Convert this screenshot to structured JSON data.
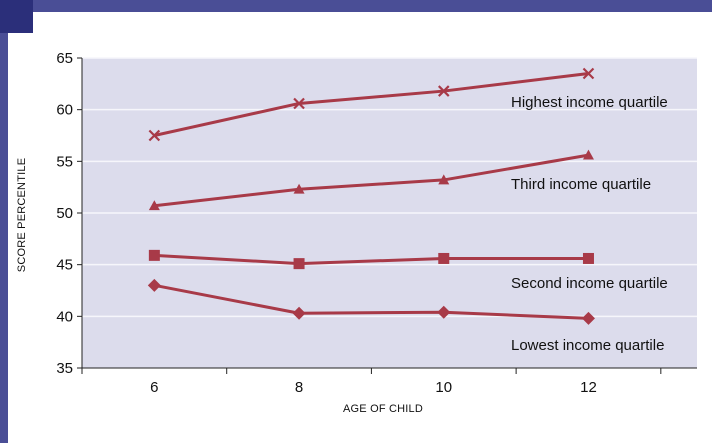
{
  "chart_data": {
    "type": "line",
    "xlabel": "AGE OF CHILD",
    "ylabel": "SCORE PERCENTILE",
    "x": [
      6,
      8,
      10,
      12
    ],
    "xlim": [
      5,
      13.5
    ],
    "ylim": [
      35,
      65
    ],
    "y_ticks": [
      35,
      40,
      45,
      50,
      55,
      60,
      65
    ],
    "x_tick_labels": [
      6,
      8,
      10,
      12
    ],
    "grid": true,
    "colors": {
      "line": "#a83a48",
      "plot_bg": "#dcdcec",
      "grid": "#f6f6fb",
      "frame": "#4a4e96"
    },
    "series": [
      {
        "name": "Highest income quartile",
        "marker": "x-mark",
        "values": [
          57.5,
          60.6,
          61.8,
          63.5
        ]
      },
      {
        "name": "Third income quartile",
        "marker": "triangle",
        "values": [
          50.7,
          52.3,
          53.2,
          55.6
        ]
      },
      {
        "name": "Second income quartile",
        "marker": "square",
        "values": [
          45.9,
          45.1,
          45.6,
          45.6
        ]
      },
      {
        "name": "Lowest income quartile",
        "marker": "diamond",
        "values": [
          43.0,
          40.3,
          40.4,
          39.8
        ]
      }
    ]
  }
}
